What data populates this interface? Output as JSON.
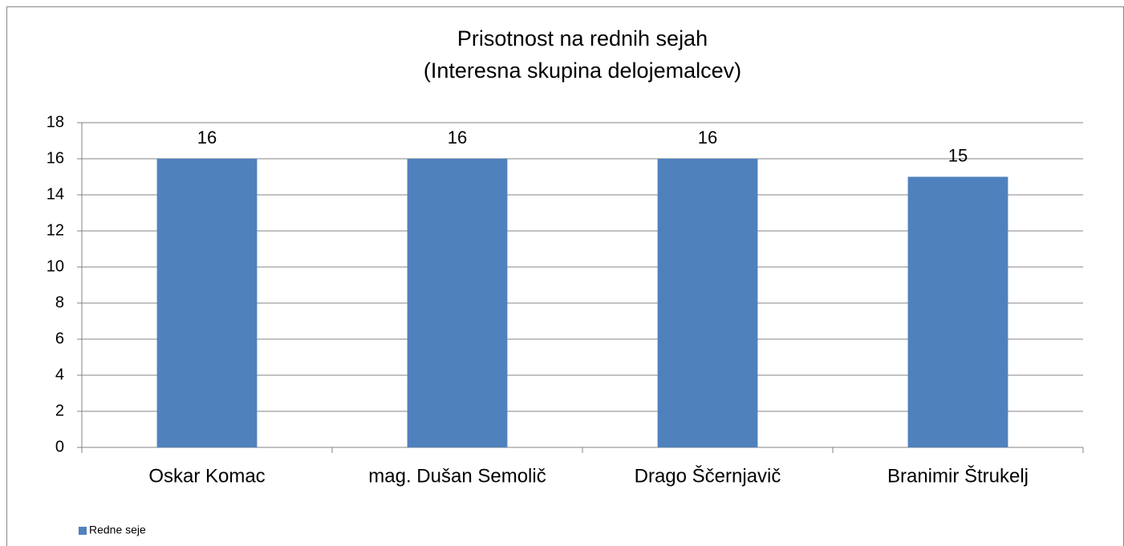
{
  "chart_data": {
    "type": "bar",
    "title": [
      "Prisotnost na rednih sejah",
      "(Interesna skupina delojemalcev)"
    ],
    "categories": [
      "Oskar Komac",
      "mag. Dušan Semolič",
      "Drago Ščernjavič",
      "Branimir Štrukelj"
    ],
    "series": [
      {
        "name": "Redne seje",
        "color": "#4f81bd",
        "values": [
          16,
          16,
          16,
          15
        ]
      }
    ],
    "ylim": [
      0,
      18
    ],
    "yticks": [
      0,
      2,
      4,
      6,
      8,
      10,
      12,
      14,
      16,
      18
    ],
    "grid": true,
    "legend": "bottom-left",
    "data_labels": true
  }
}
